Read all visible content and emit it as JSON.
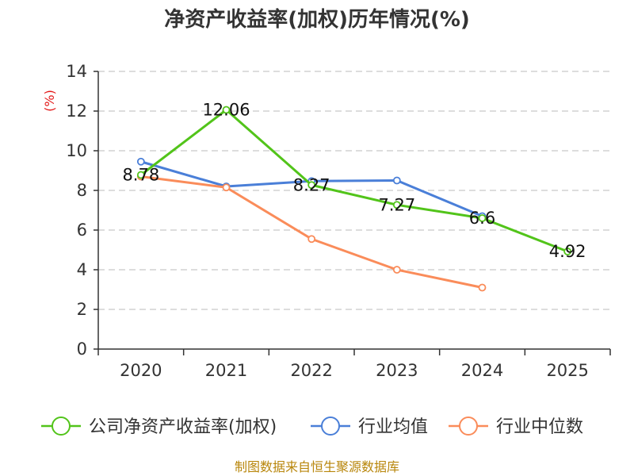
{
  "chart_data": {
    "type": "line",
    "title": "净资产收益率(加权)历年情况(%)",
    "ylabel": "(%)",
    "xlabel": "",
    "categories": [
      "2020",
      "2021",
      "2022",
      "2023",
      "2024",
      "2025"
    ],
    "ylim": [
      0,
      14
    ],
    "yticks": [
      0,
      2,
      4,
      6,
      8,
      10,
      12,
      14
    ],
    "grid": true,
    "legend_position": "bottom",
    "series": [
      {
        "name": "公司净资产收益率(加权)",
        "color": "#52c41a",
        "values": [
          8.78,
          12.06,
          8.27,
          7.27,
          6.6,
          4.92
        ],
        "labels": [
          "8.78",
          "12.06",
          "8.27",
          "7.27",
          "6.6",
          "4.92"
        ]
      },
      {
        "name": "行业均值",
        "color": "#4a7fd8",
        "values": [
          9.45,
          8.2,
          8.47,
          8.5,
          6.7,
          null
        ]
      },
      {
        "name": "行业中位数",
        "color": "#fa8c5a",
        "values": [
          8.7,
          8.15,
          5.55,
          4.0,
          3.1,
          null
        ]
      }
    ],
    "source": "制图数据来自恒生聚源数据库"
  }
}
